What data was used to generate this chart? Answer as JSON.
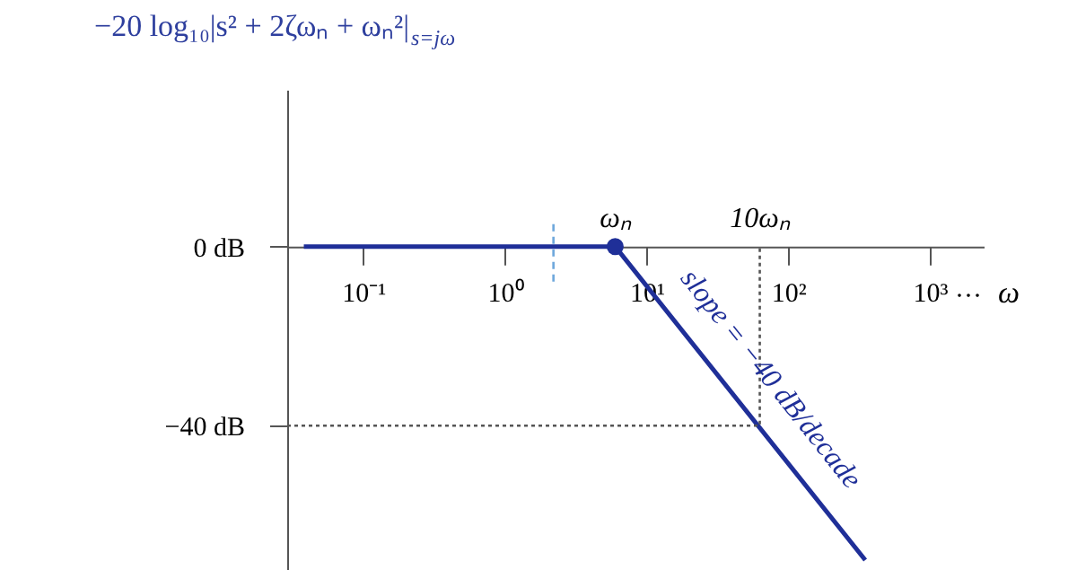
{
  "chart_data": {
    "type": "line",
    "title": "−20 log₁₀|s² + 2ζωₙ + ωₙ²|$_{s=jω}$",
    "xlabel": "ω",
    "log": "x",
    "xlim": [
      0.029,
      2400
    ],
    "ylim": [
      -72,
      35
    ],
    "xticks": [
      {
        "value": 0.1,
        "label": "10⁻¹"
      },
      {
        "value": 1,
        "label": "10⁰"
      },
      {
        "value": 10,
        "label": "10¹"
      },
      {
        "value": 100,
        "label": "10²"
      },
      {
        "value": 1000,
        "label": "10³"
      }
    ],
    "yticks": [
      {
        "value": 0,
        "label": "0 dB"
      },
      {
        "value": -40,
        "label": "−40 dB"
      }
    ],
    "grid": false,
    "series": [
      {
        "color": "#1f2f98",
        "line_style": "solid",
        "x": [
          0.038,
          6,
          350
        ],
        "values": [
          0,
          0,
          -70
        ]
      },
      {
        "color": "#555555",
        "line_style": "dotted",
        "x": [
          0.029,
          63,
          63
        ],
        "values": [
          -40,
          -40,
          0
        ]
      },
      {
        "color": "#6fa8dc",
        "line_style": "dashed",
        "x": [
          2.2,
          2.2
        ],
        "values": [
          5,
          -8
        ]
      },
      {
        "type": "scatter",
        "color": "#1f2f98",
        "marker": "circle",
        "x": [
          6
        ],
        "values": [
          0
        ]
      }
    ],
    "annotations": [
      {
        "text": "ωₙ",
        "x": 6,
        "y": 0
      },
      {
        "text": "10ωₙ",
        "x": 63,
        "y": 0
      },
      "slope = −40 dB/decade",
      "···"
    ]
  }
}
